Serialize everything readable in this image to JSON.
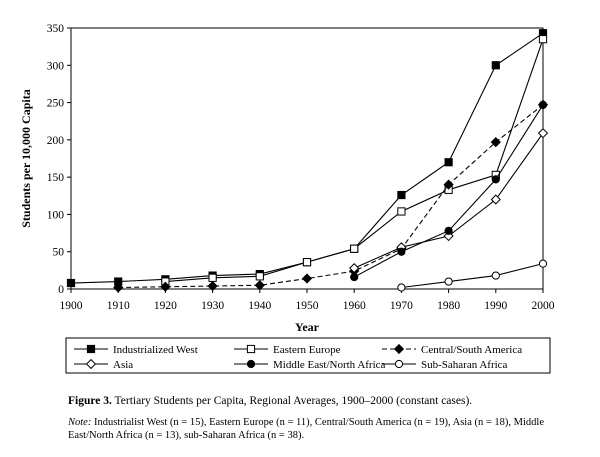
{
  "chart_data": {
    "type": "line",
    "xlabel": "Year",
    "ylabel": "Students per 10,000 Capita",
    "x": [
      1900,
      1910,
      1920,
      1930,
      1940,
      1950,
      1960,
      1970,
      1980,
      1990,
      2000
    ],
    "xlim": [
      1900,
      2000
    ],
    "ylim": [
      0,
      350
    ],
    "yticks": [
      0,
      50,
      100,
      150,
      200,
      250,
      300,
      350
    ],
    "grid": false,
    "legend": "bottom",
    "series": [
      {
        "name": "Industrialized West",
        "marker": "filled-square",
        "dash": "solid",
        "values": [
          8,
          10,
          13,
          18,
          20,
          36,
          54,
          126,
          170,
          300,
          343
        ]
      },
      {
        "name": "Eastern Europe",
        "marker": "open-square",
        "dash": "solid",
        "values": [
          null,
          null,
          10,
          15,
          17,
          36,
          54,
          104,
          133,
          153,
          335
        ]
      },
      {
        "name": "Central/South America",
        "marker": "filled-diamond",
        "dash": "dashed",
        "values": [
          null,
          2,
          3,
          4,
          5,
          14,
          24,
          54,
          140,
          197,
          247
        ]
      },
      {
        "name": "Asia",
        "marker": "open-diamond",
        "dash": "solid",
        "values": [
          null,
          null,
          null,
          null,
          null,
          null,
          28,
          56,
          71,
          120,
          209
        ]
      },
      {
        "name": "Middle East/North Africa",
        "marker": "filled-circle",
        "dash": "solid",
        "values": [
          null,
          null,
          null,
          null,
          null,
          null,
          16,
          50,
          78,
          147,
          247
        ]
      },
      {
        "name": "Sub-Saharan Africa",
        "marker": "open-circle",
        "dash": "solid",
        "values": [
          null,
          null,
          null,
          null,
          null,
          null,
          null,
          2,
          10,
          18,
          34
        ]
      }
    ]
  },
  "caption": {
    "label": "Figure 3.",
    "text": "Tertiary Students per Capita, Regional Averages, 1900–2000 (constant cases)."
  },
  "note": {
    "label": "Note:",
    "text": "Industrialist West (n = 15), Eastern Europe (n = 11), Central/South America (n = 19), Asia (n = 18), Middle East/North Africa (n = 13), sub-Saharan Africa (n = 38)."
  }
}
